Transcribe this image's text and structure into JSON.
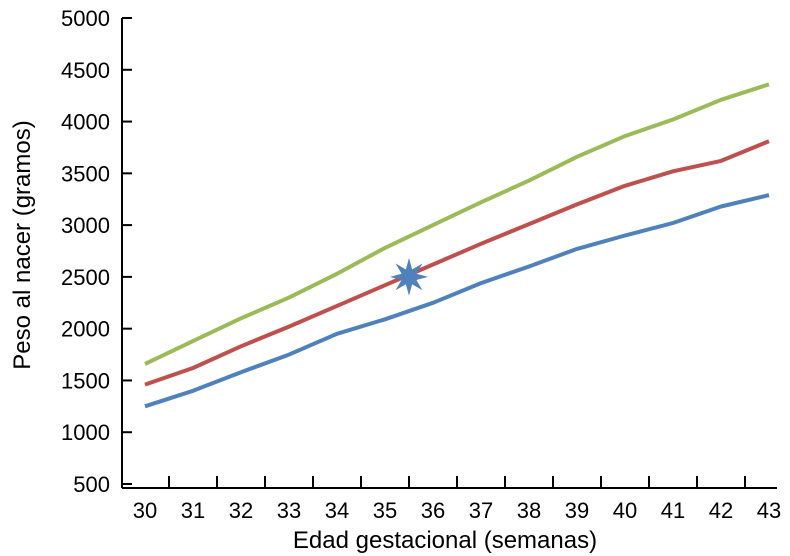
{
  "chart_data": {
    "type": "line",
    "title": "",
    "xlabel": "Edad gestacional (semanas)",
    "ylabel": "Peso al nacer (gramos)",
    "x": [
      30,
      31,
      32,
      33,
      34,
      35,
      36,
      37,
      38,
      39,
      40,
      41,
      42,
      43
    ],
    "xlim": [
      30,
      43
    ],
    "ylim": [
      500,
      5000
    ],
    "yticks": [
      500,
      1000,
      1500,
      2000,
      2500,
      3000,
      3500,
      4000,
      4500,
      5000
    ],
    "grid": false,
    "series": [
      {
        "color": "#9bbb59",
        "values": [
          1660,
          1880,
          2100,
          2300,
          2530,
          2780,
          3000,
          3220,
          3430,
          3660,
          3860,
          4020,
          4210,
          4360
        ]
      },
      {
        "color": "#c0504d",
        "values": [
          1460,
          1620,
          1830,
          2020,
          2220,
          2420,
          2620,
          2820,
          3010,
          3200,
          3380,
          3520,
          3620,
          3810
        ]
      },
      {
        "color": "#4f81bd",
        "values": [
          1250,
          1400,
          1580,
          1750,
          1950,
          2090,
          2250,
          2440,
          2600,
          2770,
          2900,
          3020,
          3180,
          3290
        ]
      }
    ],
    "marker": {
      "shape": "star",
      "color": "#4f81bd",
      "x": 35.5,
      "y": 2500
    }
  }
}
